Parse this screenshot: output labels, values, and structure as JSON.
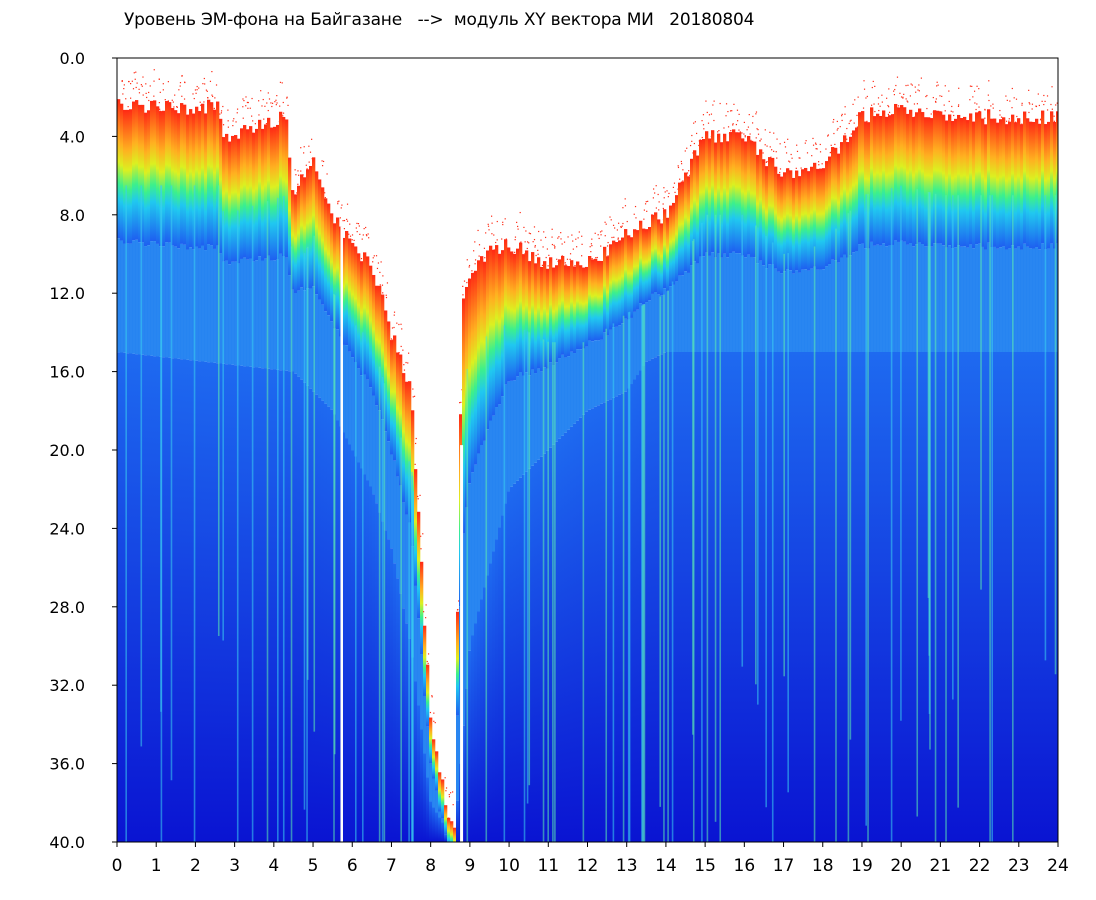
{
  "chart_data": {
    "type": "heatmap",
    "title": "Уровень ЭМ-фона на Байгазане   -->  модуль XY вектора МИ   20180804",
    "xlabel": "",
    "ylabel": "",
    "xlim": [
      0,
      24
    ],
    "ylim": [
      0,
      40
    ],
    "y_inverted": true,
    "x_ticks": [
      "0",
      "1",
      "2",
      "3",
      "4",
      "5",
      "6",
      "7",
      "8",
      "9",
      "10",
      "11",
      "12",
      "13",
      "14",
      "15",
      "16",
      "17",
      "18",
      "19",
      "20",
      "21",
      "22",
      "23",
      "24"
    ],
    "y_ticks": [
      "0.0",
      "4.0",
      "8.0",
      "12.0",
      "16.0",
      "20.0",
      "24.0",
      "28.0",
      "32.0",
      "36.0",
      "40.0"
    ],
    "colorscale": [
      "#0a14d2",
      "#1e5ff0",
      "#20c8f0",
      "#3cf08c",
      "#dcf020",
      "#ff2a14"
    ],
    "grid": false,
    "legend": "none",
    "upper_boundary_hours": [
      0,
      2.6,
      2.7,
      4.3,
      4.5,
      5.0,
      5.5,
      6.0,
      6.5,
      7.0,
      7.5,
      8.0,
      8.6,
      8.8,
      9.0,
      9.5,
      10.0,
      11.0,
      12.0,
      13.0,
      14.0,
      15.0,
      16.0,
      17.0,
      18.0,
      19.0,
      20.0,
      21.0,
      22.0,
      23.0,
      24.0
    ],
    "upper_boundary_depth": [
      2.5,
      2.5,
      4.0,
      3.0,
      7.0,
      5.0,
      8.0,
      9.5,
      10.5,
      14.0,
      17.0,
      34.0,
      40.0,
      13.0,
      11.0,
      10.0,
      9.5,
      10.5,
      10.5,
      9.0,
      8.0,
      4.0,
      4.0,
      6.0,
      5.5,
      3.0,
      2.5,
      3.0,
      3.0,
      3.0,
      3.0
    ],
    "transition_depth_hours": [
      0,
      4.5,
      5.5,
      6.5,
      7.0,
      7.5,
      8.0,
      8.6,
      9.0,
      10.0,
      11.0,
      12.0,
      13.0,
      13.5,
      14.0,
      24.0
    ],
    "transition_depth": [
      15.0,
      16.0,
      18.0,
      22.0,
      25.0,
      30.0,
      38.0,
      40.0,
      30.0,
      22.0,
      20.0,
      18.0,
      17.0,
      15.5,
      15.0,
      15.0
    ]
  }
}
